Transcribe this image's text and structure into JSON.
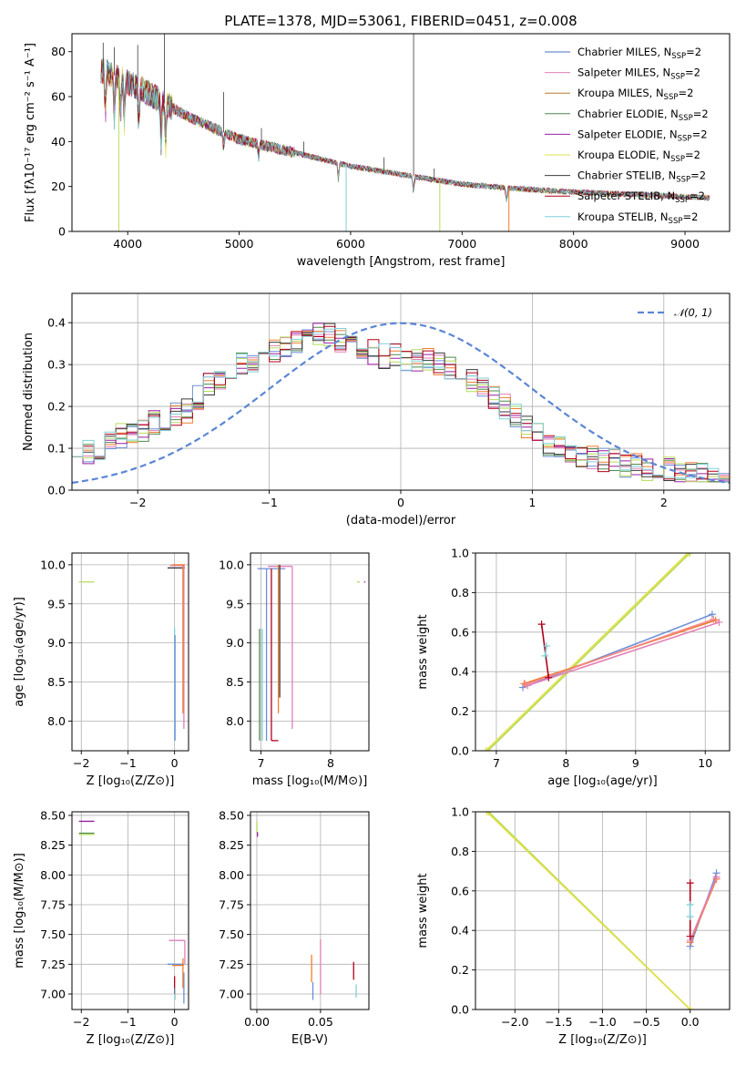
{
  "figure": {
    "title": "PLATE=1378, MJD=53061, FIBERID=0451, z=0.008"
  },
  "chart_data": [
    {
      "id": "spectrum",
      "type": "line",
      "title": "PLATE=1378, MJD=53061, FIBERID=0451, z=0.008",
      "xlabel": "wavelength [Angstrom, rest frame]",
      "ylabel": "Flux [fλ10⁻¹⁷ erg cm⁻² s⁻¹ A⁻¹]",
      "xlim": [
        3500,
        9400
      ],
      "ylim": [
        0,
        88
      ],
      "xticks": [
        4000,
        5000,
        6000,
        7000,
        8000,
        9000
      ],
      "yticks": [
        0,
        20,
        40,
        60,
        80
      ],
      "grid": false,
      "legend": "top-right",
      "continuum": {
        "x": [
          3750,
          3900,
          4100,
          4500,
          5000,
          5500,
          6000,
          6500,
          7000,
          7500,
          8000,
          8500,
          9000,
          9200
        ],
        "y": [
          72,
          69,
          64,
          52,
          41,
          35,
          29,
          25,
          21,
          19,
          17.5,
          16.5,
          15.5,
          15
        ]
      },
      "series": [
        {
          "name": "Chabrier MILES, N",
          "sub": "SSP",
          "suffix": "=2",
          "color": "#4a72c8"
        },
        {
          "name": "Salpeter MILES, N",
          "sub": "SSP",
          "suffix": "=2",
          "color": "#e37fb7"
        },
        {
          "name": "Kroupa MILES, N",
          "sub": "SSP",
          "suffix": "=2",
          "color": "#b8792a"
        },
        {
          "name": "Chabrier ELODIE, N",
          "sub": "SSP",
          "suffix": "=2",
          "color": "#4f8a4f"
        },
        {
          "name": "Salpeter ELODIE, N",
          "sub": "SSP",
          "suffix": "=2",
          "color": "#9a1fa0"
        },
        {
          "name": "Kroupa ELODIE, N",
          "sub": "SSP",
          "suffix": "=2",
          "color": "#e2e04a"
        },
        {
          "name": "Chabrier STELIB, N",
          "sub": "SSP",
          "suffix": "=2",
          "color": "#3b3b3b"
        },
        {
          "name": "Salpeter STELIB, N",
          "sub": "SSP",
          "suffix": "=2",
          "color": "#b3001a"
        },
        {
          "name": "Kroupa STELIB, N",
          "sub": "SSP",
          "suffix": "=2",
          "color": "#7fd0d8"
        }
      ],
      "hist_colors": [
        "#6c8ed6",
        "#e37fb7",
        "#f07d2e",
        "#4f8a4f",
        "#9a1fa0",
        "#b6dc5a",
        "#3b3b3b",
        "#b3001a",
        "#7fd0d8"
      ],
      "dips": [
        3800,
        3880,
        3935,
        3970,
        4100,
        4300,
        4340,
        4861,
        5175,
        5890,
        6563,
        7400
      ],
      "spikes": [
        {
          "x": 3780,
          "y": 84,
          "color": "#3b3b3b"
        },
        {
          "x": 3880,
          "y": 82,
          "color": "#3b3b3b"
        },
        {
          "x": 4090,
          "y": 83,
          "color": "#3b3b3b"
        },
        {
          "x": 4330,
          "y": 88,
          "color": "#3b3b3b"
        },
        {
          "x": 4860,
          "y": 62,
          "color": "#3b3b3b"
        },
        {
          "x": 5200,
          "y": 46,
          "color": "#3b3b3b"
        },
        {
          "x": 5580,
          "y": 40,
          "color": "#3b3b3b"
        },
        {
          "x": 6300,
          "y": 33,
          "color": "#3b3b3b"
        },
        {
          "x": 6565,
          "y": 88,
          "color": "#3b3b3b"
        },
        {
          "x": 6750,
          "y": 28,
          "color": "#3b3b3b"
        }
      ],
      "drops": [
        {
          "x": 3920,
          "y": 0,
          "color": "#b6dc5a"
        },
        {
          "x": 5960,
          "y": 0,
          "color": "#7fd0d8"
        },
        {
          "x": 6800,
          "y": 0,
          "color": "#b6dc5a"
        },
        {
          "x": 7420,
          "y": 0,
          "color": "#f07d2e"
        }
      ]
    },
    {
      "id": "residuals",
      "type": "line",
      "xlabel": "(data-model)/error",
      "ylabel": "Normed distribution",
      "xlim": [
        -2.5,
        2.5
      ],
      "ylim": [
        0,
        0.47
      ],
      "xticks": [
        -2,
        -1,
        0,
        1,
        2
      ],
      "yticks": [
        0.0,
        0.1,
        0.2,
        0.3,
        0.4
      ],
      "grid": true,
      "legend": "top-right",
      "legend_label": "𝒩(0, 1)",
      "base_hist": [
        0.11,
        0.09,
        0.1,
        0.11,
        0.13,
        0.13,
        0.14,
        0.16,
        0.16,
        0.18,
        0.19,
        0.22,
        0.25,
        0.26,
        0.29,
        0.3,
        0.31,
        0.32,
        0.33,
        0.34,
        0.35,
        0.36,
        0.37,
        0.37,
        0.36,
        0.35,
        0.34,
        0.33,
        0.32,
        0.32,
        0.31,
        0.31,
        0.31,
        0.3,
        0.29,
        0.28,
        0.26,
        0.24,
        0.22,
        0.2,
        0.18,
        0.15,
        0.13,
        0.11,
        0.1,
        0.09,
        0.08,
        0.08,
        0.07,
        0.07,
        0.06,
        0.06,
        0.05,
        0.05,
        0.05,
        0.04,
        0.04,
        0.04,
        0.03,
        0.03
      ]
    },
    {
      "id": "age-vs-Z",
      "type": "scatter",
      "xlabel": "Z [log₁₀(Z/Z⊙)]",
      "ylabel": "age  [log₁₀(age/yr)]",
      "xlim": [
        -2.2,
        0.3
      ],
      "ylim": [
        7.62,
        10.15
      ],
      "xticks": [
        -2,
        -1,
        0
      ],
      "yticks": [
        8.0,
        8.5,
        9.0,
        9.5,
        10.0
      ],
      "grid": true,
      "segments": [
        {
          "x": [
            -2.05,
            -1.72
          ],
          "y": [
            9.78,
            9.78
          ],
          "color": "#b6dc5a"
        },
        {
          "x": [
            -0.15,
            0.22
          ],
          "y": [
            9.96,
            9.96
          ],
          "color": "#3b3b3b"
        },
        {
          "x": [
            -0.1,
            0.22
          ],
          "y": [
            9.99,
            9.99
          ],
          "color": "#e37fb7"
        },
        {
          "x": [
            -0.05,
            0.22
          ],
          "y": [
            10.0,
            10.0
          ],
          "color": "#f07d2e"
        },
        {
          "x": [
            0.2,
            0.2
          ],
          "y": [
            7.9,
            10.0
          ],
          "color": "#e37fb7"
        },
        {
          "x": [
            0.18,
            0.18
          ],
          "y": [
            8.1,
            10.0
          ],
          "color": "#f07d2e"
        },
        {
          "x": [
            0.0,
            0.0
          ],
          "y": [
            7.75,
            9.2
          ],
          "color": "#7fd0d8"
        },
        {
          "x": [
            0.01,
            0.01
          ],
          "y": [
            7.75,
            9.1
          ],
          "color": "#6c8ed6"
        }
      ]
    },
    {
      "id": "age-vs-mass",
      "type": "scatter",
      "xlabel": "mass [log₁₀(M/M⊙)]",
      "ylabel": "",
      "xlim": [
        6.85,
        8.55
      ],
      "ylim": [
        7.62,
        10.15
      ],
      "xticks": [
        7,
        8
      ],
      "yticks": [
        8.0,
        8.5,
        9.0,
        9.5,
        10.0
      ],
      "grid": true,
      "segments": [
        {
          "x": [
            6.95,
            7.35
          ],
          "y": [
            9.95,
            9.95
          ],
          "color": "#6c8ed6"
        },
        {
          "x": [
            7.1,
            7.45
          ],
          "y": [
            9.98,
            9.98
          ],
          "color": "#e37fb7"
        },
        {
          "x": [
            6.98,
            6.98
          ],
          "y": [
            7.75,
            9.18
          ],
          "color": "#4f8a4f"
        },
        {
          "x": [
            7.02,
            7.02
          ],
          "y": [
            7.75,
            9.18
          ],
          "color": "#7fd0d8"
        },
        {
          "x": [
            7.08,
            7.08
          ],
          "y": [
            7.75,
            9.95
          ],
          "color": "#6c8ed6"
        },
        {
          "x": [
            7.15,
            7.15
          ],
          "y": [
            7.75,
            9.95
          ],
          "color": "#b3001a"
        },
        {
          "x": [
            7.15,
            7.25
          ],
          "y": [
            7.75,
            7.75
          ],
          "color": "#b3001a"
        },
        {
          "x": [
            7.25,
            7.25
          ],
          "y": [
            8.1,
            10.0
          ],
          "color": "#f07d2e"
        },
        {
          "x": [
            7.27,
            7.27
          ],
          "y": [
            8.3,
            10.0
          ],
          "color": "#3b3b3b"
        },
        {
          "x": [
            7.45,
            7.45
          ],
          "y": [
            7.9,
            9.98
          ],
          "color": "#e37fb7"
        },
        {
          "x": [
            8.38,
            8.42
          ],
          "y": [
            9.78,
            9.78
          ],
          "color": "#b6dc5a"
        },
        {
          "x": [
            8.48,
            8.5
          ],
          "y": [
            9.78,
            9.78
          ],
          "color": "#9a1fa0"
        }
      ]
    },
    {
      "id": "mass-weight-vs-age",
      "type": "line",
      "xlabel": "age  [log₁₀(age/yr)]",
      "ylabel": "mass weight",
      "xlim": [
        6.7,
        10.35
      ],
      "ylim": [
        0,
        1
      ],
      "xticks": [
        7,
        8,
        9,
        10
      ],
      "yticks": [
        0.0,
        0.2,
        0.4,
        0.6,
        0.8,
        1.0
      ],
      "grid": true,
      "lines": [
        {
          "x": [
            6.88,
            9.78
          ],
          "y": [
            0.0,
            1.0
          ],
          "color": "#b6dc5a"
        },
        {
          "x": [
            6.85,
            9.75
          ],
          "y": [
            0.0,
            1.0
          ],
          "color": "#e2e04a"
        },
        {
          "x": [
            7.38,
            10.1
          ],
          "y": [
            0.32,
            0.69
          ],
          "color": "#6c8ed6"
        },
        {
          "x": [
            7.4,
            10.15
          ],
          "y": [
            0.34,
            0.66
          ],
          "color": "#f07d2e"
        },
        {
          "x": [
            7.45,
            10.2
          ],
          "y": [
            0.33,
            0.65
          ],
          "color": "#e37fb7"
        },
        {
          "x": [
            7.42,
            10.12
          ],
          "y": [
            0.335,
            0.665
          ],
          "color": "#f58a8a"
        },
        {
          "x": [
            7.65,
            7.75
          ],
          "y": [
            0.64,
            0.37
          ],
          "color": "#b3001a"
        },
        {
          "x": [
            7.7,
            7.72
          ],
          "y": [
            0.48,
            0.53
          ],
          "color": "#7fd0d8"
        }
      ]
    },
    {
      "id": "mass-vs-Z",
      "type": "scatter",
      "xlabel": "Z [log₁₀(Z/Z⊙)]",
      "ylabel": "mass [log₁₀(M/M⊙)]",
      "xlim": [
        -2.2,
        0.3
      ],
      "ylim": [
        6.87,
        8.53
      ],
      "xticks": [
        -2,
        -1,
        0
      ],
      "yticks": [
        7.0,
        7.25,
        7.5,
        7.75,
        8.0,
        8.25,
        8.5
      ],
      "grid": true,
      "segments": [
        {
          "x": [
            -2.05,
            -1.72
          ],
          "y": [
            8.45,
            8.45
          ],
          "color": "#9a1fa0"
        },
        {
          "x": [
            -2.05,
            -1.72
          ],
          "y": [
            8.35,
            8.35
          ],
          "color": "#4f8a4f"
        },
        {
          "x": [
            -2.05,
            -1.72
          ],
          "y": [
            8.34,
            8.34
          ],
          "color": "#b6dc5a"
        },
        {
          "x": [
            -0.12,
            0.22
          ],
          "y": [
            7.45,
            7.45
          ],
          "color": "#e37fb7"
        },
        {
          "x": [
            0.22,
            0.22
          ],
          "y": [
            7.25,
            7.45
          ],
          "color": "#e37fb7"
        },
        {
          "x": [
            -0.15,
            0.2
          ],
          "y": [
            7.25,
            7.25
          ],
          "color": "#6c8ed6"
        },
        {
          "x": [
            -0.05,
            0.2
          ],
          "y": [
            7.24,
            7.24
          ],
          "color": "#f07d2e"
        },
        {
          "x": [
            0.0,
            0.0
          ],
          "y": [
            7.0,
            7.15
          ],
          "color": "#b3001a"
        },
        {
          "x": [
            0.01,
            0.01
          ],
          "y": [
            6.95,
            7.05
          ],
          "color": "#7fd0d8"
        },
        {
          "x": [
            0.2,
            0.2
          ],
          "y": [
            6.92,
            7.18
          ],
          "color": "#6c8ed6"
        },
        {
          "x": [
            0.18,
            0.18
          ],
          "y": [
            7.05,
            7.3
          ],
          "color": "#f07d2e"
        }
      ]
    },
    {
      "id": "mass-vs-EBV",
      "type": "scatter",
      "xlabel": "E(B-V)",
      "ylabel": "",
      "xlim": [
        -0.005,
        0.088
      ],
      "ylim": [
        6.87,
        8.53
      ],
      "xticks": [
        0.0,
        0.05
      ],
      "yticks": [
        7.0,
        7.25,
        7.5,
        7.75,
        8.0,
        8.25,
        8.5
      ],
      "grid": true,
      "segments": [
        {
          "x": [
            0.0,
            0.0
          ],
          "y": [
            8.35,
            8.45
          ],
          "color": "#b6dc5a"
        },
        {
          "x": [
            0.0005,
            0.0005
          ],
          "y": [
            8.32,
            8.36
          ],
          "color": "#9a1fa0"
        },
        {
          "x": [
            0.043,
            0.043
          ],
          "y": [
            7.1,
            7.33
          ],
          "color": "#f07d2e"
        },
        {
          "x": [
            0.044,
            0.044
          ],
          "y": [
            6.95,
            7.1
          ],
          "color": "#6c8ed6"
        },
        {
          "x": [
            0.05,
            0.05
          ],
          "y": [
            7.0,
            7.46
          ],
          "color": "#e37fb7"
        },
        {
          "x": [
            0.076,
            0.076
          ],
          "y": [
            7.12,
            7.27
          ],
          "color": "#b3001a"
        },
        {
          "x": [
            0.078,
            0.078
          ],
          "y": [
            6.97,
            7.08
          ],
          "color": "#7fd0d8"
        }
      ]
    },
    {
      "id": "mass-weight-vs-Z",
      "type": "line",
      "xlabel": "Z [log₁₀(Z/Z⊙)]",
      "ylabel": "mass weight",
      "xlim": [
        -2.45,
        0.45
      ],
      "ylim": [
        0,
        1
      ],
      "xticks": [
        -2.0,
        -1.5,
        -1.0,
        -0.5,
        0.0
      ],
      "yticks": [
        0.0,
        0.2,
        0.4,
        0.6,
        0.8,
        1.0
      ],
      "grid": true,
      "lines": [
        {
          "x": [
            -2.3,
            0.0
          ],
          "y": [
            1.0,
            0.0
          ],
          "color": "#b6dc5a"
        },
        {
          "x": [
            -2.32,
            0.0
          ],
          "y": [
            1.0,
            0.0
          ],
          "color": "#e2e04a"
        },
        {
          "x": [
            0.0,
            0.3
          ],
          "y": [
            0.32,
            0.69
          ],
          "color": "#6c8ed6"
        },
        {
          "x": [
            0.0,
            0.3
          ],
          "y": [
            0.34,
            0.66
          ],
          "color": "#f07d2e"
        },
        {
          "x": [
            0.0,
            0.3
          ],
          "y": [
            0.35,
            0.67
          ],
          "color": "#e37fb7"
        },
        {
          "x": [
            0.0,
            0.0
          ],
          "y": [
            0.37,
            0.64
          ],
          "color": "#b3001a"
        },
        {
          "x": [
            0.0,
            0.0
          ],
          "y": [
            0.47,
            0.53
          ],
          "color": "#7fd0d8"
        }
      ]
    }
  ]
}
